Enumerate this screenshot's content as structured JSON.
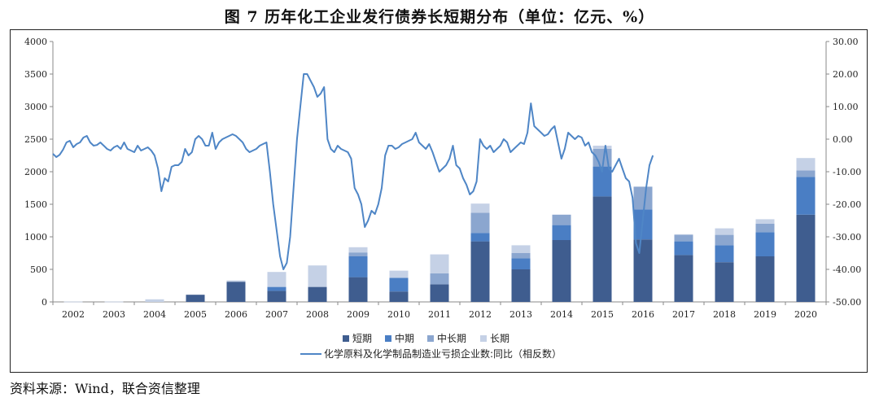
{
  "title": "图 7   历年化工企业发行债券长短期分布（单位：亿元、%）",
  "source": "资料来源：Wind，联合资信整理",
  "colors": {
    "short": "#3f5d8f",
    "medium": "#4a7ec4",
    "medium_long": "#8ba6cf",
    "long": "#c5d1e6",
    "line": "#4f86c6"
  },
  "chart_data": {
    "type": "bar",
    "categories": [
      "2002",
      "2003",
      "2004",
      "2005",
      "2006",
      "2007",
      "2008",
      "2009",
      "2010",
      "2011",
      "2012",
      "2013",
      "2014",
      "2015",
      "2016",
      "2017",
      "2018",
      "2019",
      "2020"
    ],
    "series": [
      {
        "name": "短期",
        "values": [
          0,
          0,
          0,
          110,
          310,
          170,
          230,
          380,
          160,
          270,
          930,
          500,
          950,
          1620,
          960,
          720,
          610,
          700,
          1340
        ]
      },
      {
        "name": "中期",
        "values": [
          0,
          0,
          0,
          0,
          0,
          60,
          0,
          320,
          210,
          0,
          130,
          170,
          230,
          460,
          460,
          210,
          260,
          370,
          580
        ]
      },
      {
        "name": "中长期",
        "values": [
          0,
          0,
          0,
          0,
          0,
          0,
          0,
          60,
          0,
          170,
          310,
          80,
          160,
          270,
          350,
          100,
          160,
          130,
          100
        ]
      },
      {
        "name": "长期",
        "values": [
          5,
          5,
          40,
          0,
          20,
          230,
          330,
          80,
          110,
          290,
          140,
          120,
          0,
          50,
          0,
          10,
          100,
          70,
          190
        ]
      }
    ],
    "line_series": {
      "name": "化学原料及化学制品制造业亏损企业数:同比（相反数）",
      "axis": "right",
      "x_start": 2001.5,
      "x_step": 0.0833,
      "values": [
        -4.5,
        -5.5,
        -4.8,
        -3.2,
        -1,
        -0.5,
        -2.5,
        -1.5,
        -1,
        0.5,
        1,
        -1,
        -2,
        -1.8,
        -1,
        -2,
        -3,
        -3.5,
        -2.5,
        -2,
        -3,
        -1,
        -3,
        -3.5,
        -4,
        -2,
        -3.5,
        -3,
        -2.5,
        -3.5,
        -5,
        -9,
        -16,
        -12,
        -13,
        -8.5,
        -8,
        -8,
        -7,
        -3,
        -5,
        -4,
        0,
        1,
        0,
        -2,
        -2,
        2,
        -3,
        -1,
        0,
        0.5,
        1,
        1.5,
        1,
        0,
        -1,
        -3,
        -4,
        -3.5,
        -3,
        -2,
        -1.5,
        -1,
        -10,
        -20,
        -28,
        -36,
        -40,
        -38,
        -30,
        -15,
        0,
        10,
        20,
        20,
        18,
        16,
        13,
        14,
        16,
        0,
        -3,
        -4,
        -2,
        -3,
        -3.5,
        -4,
        -6,
        -15,
        -17,
        -20,
        -27,
        -25,
        -22,
        -23,
        -20,
        -15,
        -5,
        -2,
        -2,
        -3,
        -2.5,
        -1.5,
        -1,
        -0.5,
        0,
        2,
        -1,
        -2,
        -3,
        -1.5,
        -4,
        -7,
        -10,
        -9,
        -8,
        -6,
        -2,
        -8,
        -9,
        -12,
        -14,
        -17,
        -16,
        -13,
        0,
        -2,
        -3,
        -2,
        -4,
        -3,
        -2,
        0,
        -1,
        -4,
        -3,
        -2,
        -1,
        -1.5,
        2,
        11,
        4,
        3,
        2,
        1,
        1.5,
        3,
        4,
        -1,
        -6,
        -3,
        2,
        1,
        0,
        1,
        0.5,
        -2,
        -1,
        -4,
        -5,
        -7,
        -10,
        -2,
        -9,
        -10,
        -8,
        -6,
        -9,
        -12,
        -13,
        -18,
        -32,
        -35,
        -25,
        -15,
        -8,
        -5
      ]
    },
    "y_left": {
      "min": 0,
      "max": 4000,
      "ticks": [
        0,
        500,
        1000,
        1500,
        2000,
        2500,
        3000,
        3500,
        4000
      ]
    },
    "y_right": {
      "min": -50,
      "max": 30,
      "ticks": [
        "-50.00",
        "-40.00",
        "-30.00",
        "-20.00",
        "-10.00",
        "0.00",
        "10.00",
        "20.00",
        "30.00"
      ]
    },
    "legend": {
      "bars": [
        "短期",
        "中期",
        "中长期",
        "长期"
      ],
      "line": "化学原料及化学制品制造业亏损企业数:同比（相反数）"
    }
  }
}
